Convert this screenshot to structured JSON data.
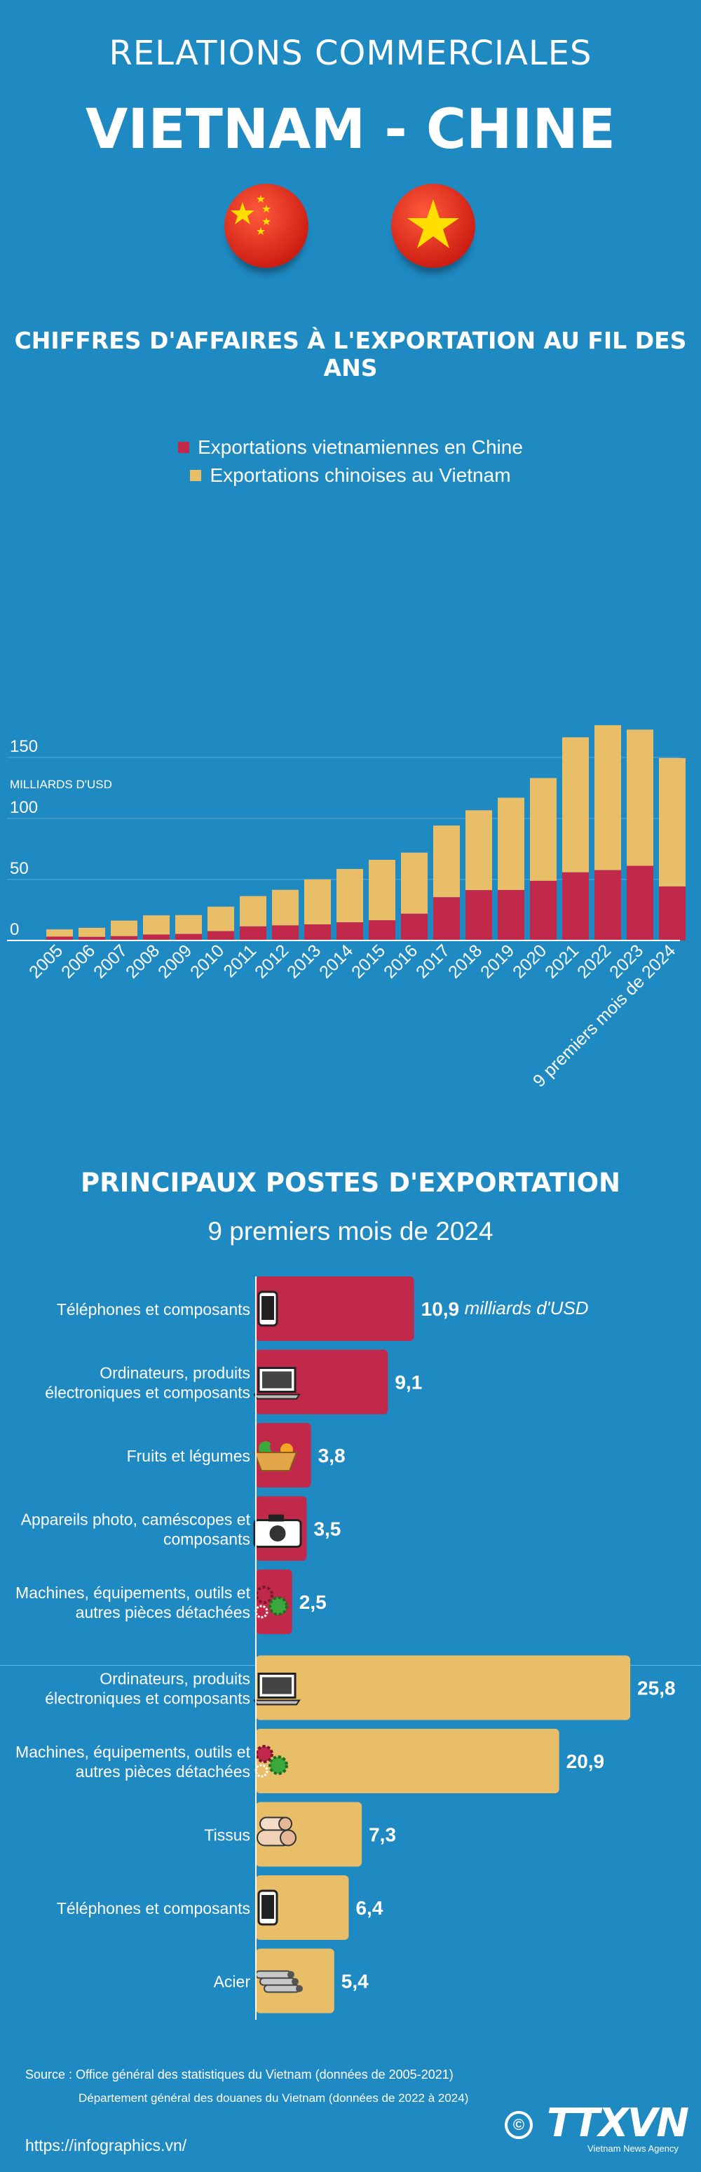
{
  "header": {
    "kicker": "RELATIONS COMMERCIALES",
    "title": "VIETNAM - CHINE"
  },
  "colors": {
    "background": "#1f89c2",
    "red": "#c1294a",
    "gold": "#e8be69",
    "china_red": "#e12a1e",
    "vietnam_red": "#d9261c",
    "star_yellow": "#ffde00"
  },
  "icons": {
    "flag_china": "china-flag-icon",
    "flag_vietnam": "vietnam-flag-icon"
  },
  "chart_data": [
    {
      "type": "bar",
      "stacked": true,
      "title": "CHIFFRES D'AFFAIRES À L'EXPORTATION AU FIL DES ANS",
      "ylabel": "MILLIARDS D'USD",
      "ylim": [
        0,
        180
      ],
      "yticks": [
        0,
        50,
        100,
        150
      ],
      "grid": true,
      "legend_position": "top-center",
      "categories": [
        "2005",
        "2006",
        "2007",
        "2008",
        "2009",
        "2010",
        "2011",
        "2012",
        "2013",
        "2014",
        "2015",
        "2016",
        "2017",
        "2018",
        "2019",
        "2020",
        "2021",
        "2022",
        "2023",
        "9 premiers mois de 2024"
      ],
      "series": [
        {
          "name": "Exportations vietnamiennes en Chine",
          "color": "#c1294a",
          "values": [
            3.2,
            3.0,
            3.6,
            4.9,
            5.4,
            7.7,
            11.6,
            12.4,
            13.2,
            14.9,
            16.6,
            22.0,
            35.5,
            41.3,
            41.4,
            48.9,
            55.9,
            57.7,
            61.2,
            44.3
          ]
        },
        {
          "name": "Exportations chinoises au Vietnam",
          "color": "#e8be69",
          "values": [
            5.9,
            7.4,
            12.7,
            15.7,
            15.4,
            20.0,
            24.8,
            29.1,
            36.9,
            43.7,
            49.5,
            50.0,
            58.7,
            65.4,
            75.6,
            84.2,
            110.6,
            118.7,
            111.6,
            105.2
          ]
        }
      ]
    },
    {
      "type": "bar",
      "orientation": "horizontal",
      "title": "PRINCIPAUX POSTES D'EXPORTATION",
      "subtitle": "9 premiers mois de 2024",
      "unit": "milliards d'USD",
      "groups": [
        {
          "series": "Exportations vietnamiennes en Chine",
          "color": "#c1294a",
          "items": [
            {
              "label": [
                "Téléphones et composants"
              ],
              "value": 10.9,
              "value_label": "10,9",
              "icon": "phone-icon"
            },
            {
              "label": [
                "Ordinateurs, produits",
                "électroniques et composants"
              ],
              "value": 9.1,
              "value_label": "9,1",
              "icon": "laptop-icon"
            },
            {
              "label": [
                "Fruits et légumes"
              ],
              "value": 3.8,
              "value_label": "3,8",
              "icon": "fruit-basket-icon"
            },
            {
              "label": [
                "Appareils photo, caméscopes et",
                "composants"
              ],
              "value": 3.5,
              "value_label": "3,5",
              "icon": "camera-icon"
            },
            {
              "label": [
                "Machines, équipements, outils et",
                "autres pièces détachées"
              ],
              "value": 2.5,
              "value_label": "2,5",
              "icon": "gears-icon"
            }
          ]
        },
        {
          "series": "Exportations chinoises au Vietnam",
          "color": "#e8be69",
          "items": [
            {
              "label": [
                "Ordinateurs, produits",
                "électroniques et composants"
              ],
              "value": 25.8,
              "value_label": "25,8",
              "icon": "laptop-icon"
            },
            {
              "label": [
                "Machines, équipements, outils et",
                "autres pièces détachées"
              ],
              "value": 20.9,
              "value_label": "20,9",
              "icon": "gears-icon"
            },
            {
              "label": [
                "Tissus"
              ],
              "value": 7.3,
              "value_label": "7,3",
              "icon": "fabric-rolls-icon"
            },
            {
              "label": [
                "Téléphones et composants"
              ],
              "value": 6.4,
              "value_label": "6,4",
              "icon": "phone-icon"
            },
            {
              "label": [
                "Acier"
              ],
              "value": 5.4,
              "value_label": "5,4",
              "icon": "steel-pipes-icon"
            }
          ]
        }
      ]
    }
  ],
  "footer": {
    "source_line1": "Source : Office général des statistiques du Vietnam (données de 2005-2021)",
    "source_line2": "Département général des douanes du Vietnam (données de 2022 à 2024)",
    "url": "https://infographics.vn/",
    "copyright": "©",
    "logo_text": "TTXVN",
    "logo_subtext": "Vietnam News Agency"
  }
}
